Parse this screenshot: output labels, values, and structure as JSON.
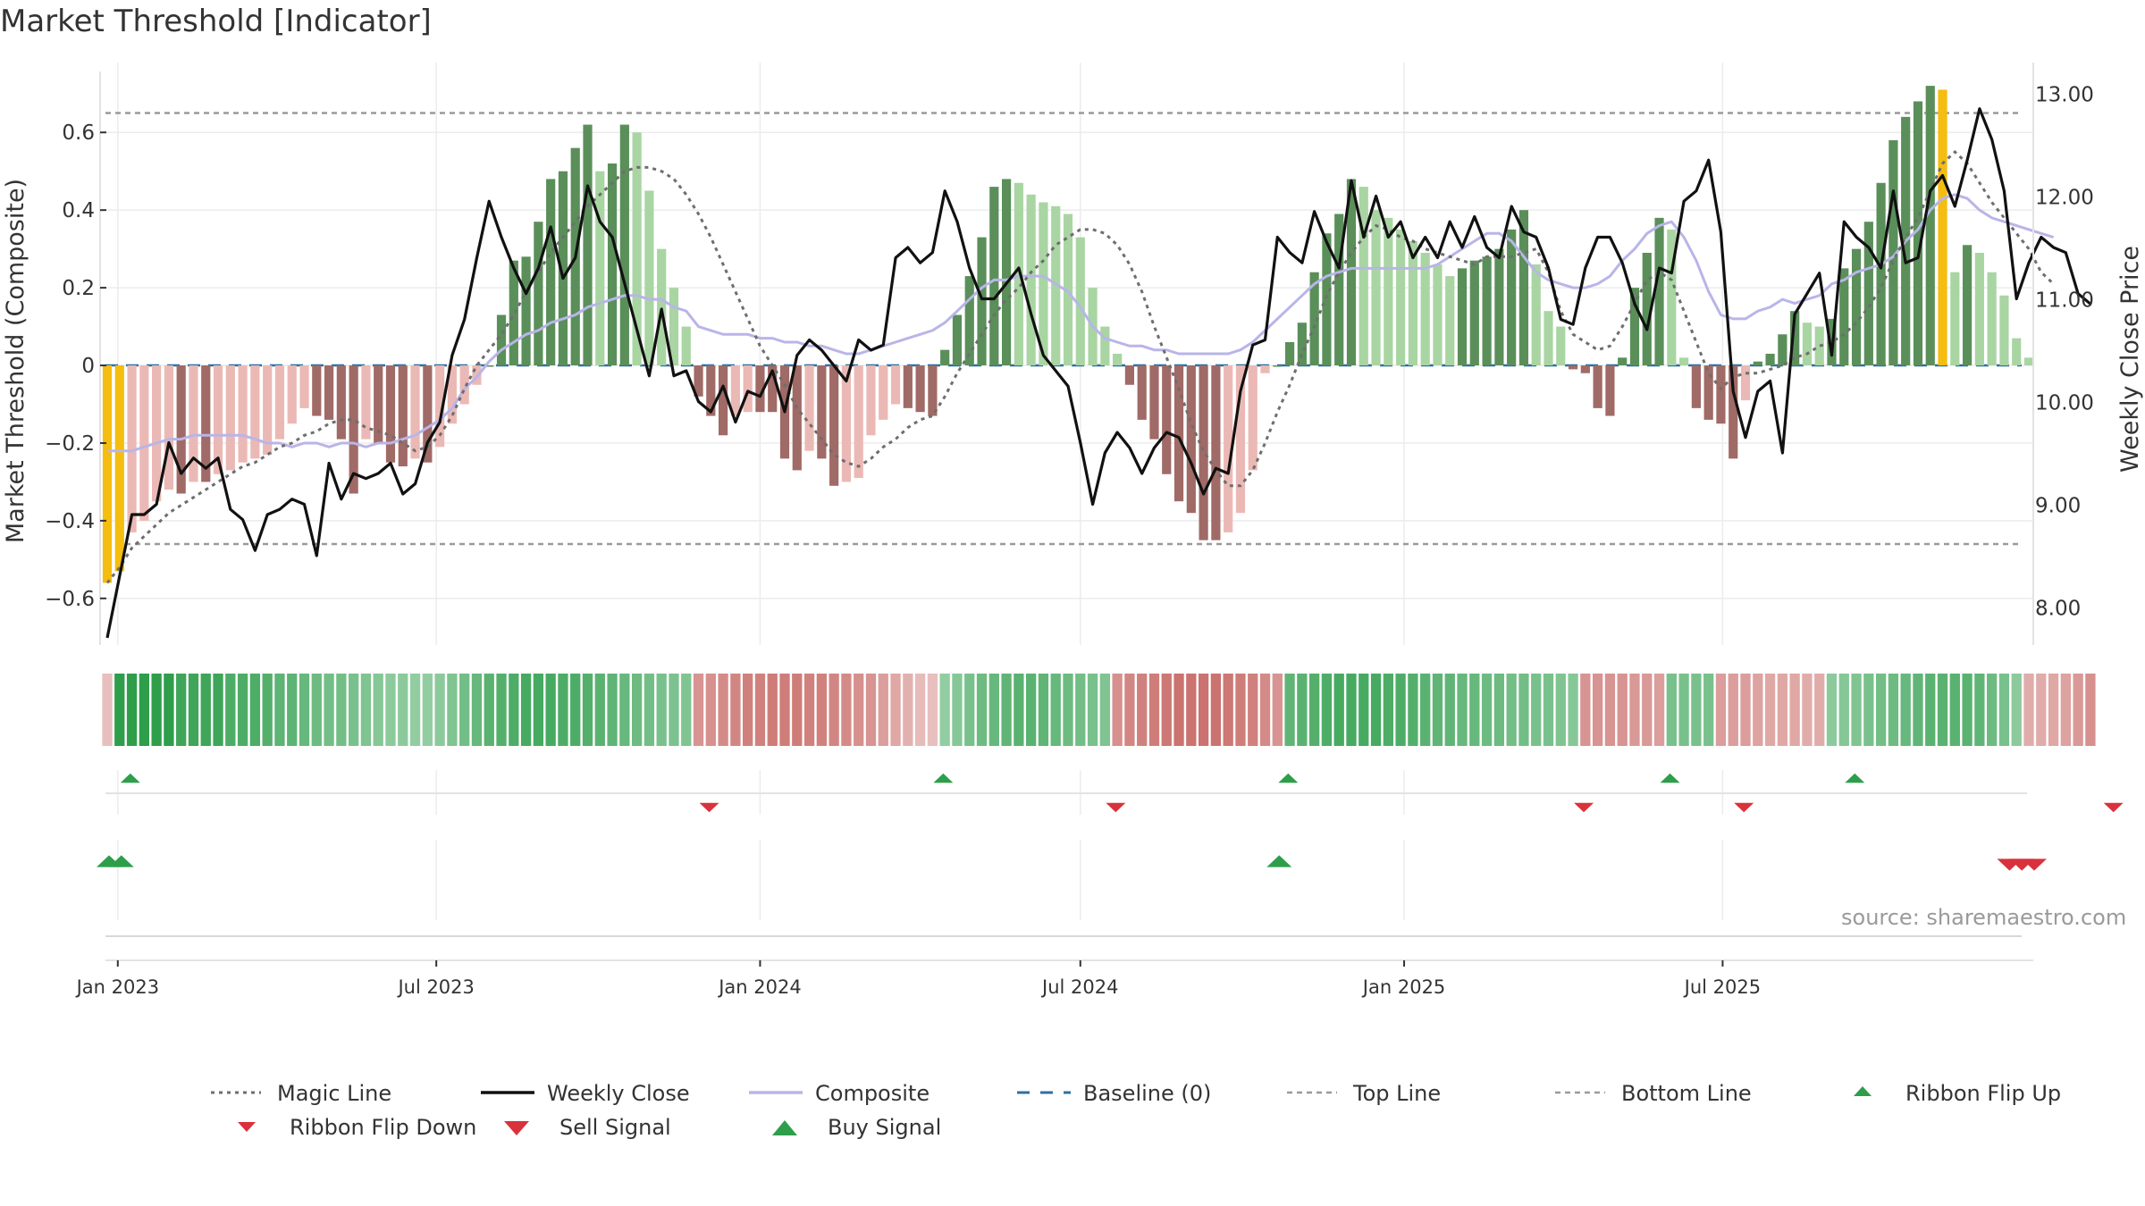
{
  "title": "Market Threshold [Indicator]",
  "source": "source: sharemaestro.com",
  "colors": {
    "green_strong": "#5a8f5a",
    "green_light": "#a9d5a3",
    "red_strong": "#a06a66",
    "red_light": "#ebb9b5",
    "extreme": "#f5bd0f",
    "close": "#111111",
    "composite": "#b9b5e8",
    "magic": "#6e6e6e",
    "baseline": "#2f6fa0",
    "band": "#9a9a9a",
    "buy": "#2e9e4b",
    "sell": "#d9323c"
  },
  "legend": [
    {
      "label": "Magic Line",
      "key": "magic",
      "style": "dotted"
    },
    {
      "label": "Weekly Close",
      "key": "close",
      "style": "solid"
    },
    {
      "label": "Composite",
      "key": "composite",
      "style": "solid"
    },
    {
      "label": "Baseline (0)",
      "key": "baseline",
      "style": "dashed"
    },
    {
      "label": "Top Line",
      "key": "band",
      "style": "dashed-fine"
    },
    {
      "label": "Bottom Line",
      "key": "band",
      "style": "dashed-fine"
    },
    {
      "label": "Ribbon Flip Up",
      "key": "buy",
      "style": "tri-up-small"
    },
    {
      "label": "Ribbon Flip Down",
      "key": "sell",
      "style": "tri-down-small"
    },
    {
      "label": "Sell Signal",
      "key": "sell",
      "style": "tri-down"
    },
    {
      "label": "Buy Signal",
      "key": "buy",
      "style": "tri-up"
    }
  ],
  "chart_data": {
    "type": "bar",
    "x_start": "2022-12-26",
    "x_interval": "1 week",
    "ylabel": "Market Threshold (Composite)",
    "y2label": "Weekly Close Price",
    "ylim": [
      -0.72,
      0.78
    ],
    "y2lim": [
      7.63,
      13.3
    ],
    "yticks": [
      0.6,
      0.4,
      0.2,
      0,
      -0.2,
      -0.4,
      -0.6
    ],
    "ytick_labels": [
      "0.6",
      "0.4",
      "0.2",
      "0",
      "−0.2",
      "−0.4",
      "−0.6"
    ],
    "y2ticks": [
      13.0,
      12.0,
      11.0,
      10.0,
      9.0,
      8.0
    ],
    "y2tick_labels": [
      "13.00",
      "12.00",
      "11.00",
      "10.00",
      "9.00",
      "8.00"
    ],
    "xticks": [
      "2023-01-01",
      "2023-07-01",
      "2024-01-01",
      "2024-07-01",
      "2025-01-01",
      "2025-07-01"
    ],
    "xtick_labels": [
      "Jan 2023",
      "Jul 2023",
      "Jan 2024",
      "Jul 2024",
      "Jan 2025",
      "Jul 2025"
    ],
    "top_line": 0.65,
    "bottom_line": -0.46,
    "baseline": 0,
    "grid": true,
    "series": [
      {
        "name": "Composite",
        "values": [
          -0.56,
          -0.53,
          -0.43,
          -0.4,
          -0.35,
          -0.32,
          -0.33,
          -0.3,
          -0.3,
          -0.28,
          -0.27,
          -0.25,
          -0.24,
          -0.23,
          -0.19,
          -0.15,
          -0.11,
          -0.13,
          -0.14,
          -0.19,
          -0.33,
          -0.19,
          -0.2,
          -0.25,
          -0.26,
          -0.24,
          -0.25,
          -0.21,
          -0.15,
          -0.1,
          -0.05,
          0.0,
          0.13,
          0.27,
          0.28,
          0.37,
          0.48,
          0.5,
          0.56,
          0.62,
          0.5,
          0.52,
          0.62,
          0.6,
          0.45,
          0.3,
          0.2,
          0.1,
          -0.08,
          -0.13,
          -0.18,
          -0.13,
          -0.12,
          -0.12,
          -0.12,
          -0.24,
          -0.27,
          -0.22,
          -0.24,
          -0.31,
          -0.3,
          -0.29,
          -0.18,
          -0.14,
          -0.1,
          -0.11,
          -0.12,
          -0.13,
          0.04,
          0.13,
          0.23,
          0.33,
          0.46,
          0.48,
          0.47,
          0.44,
          0.42,
          0.41,
          0.39,
          0.33,
          0.2,
          0.1,
          0.03,
          -0.05,
          -0.14,
          -0.19,
          -0.28,
          -0.35,
          -0.38,
          -0.45,
          -0.45,
          -0.43,
          -0.38,
          -0.27,
          -0.02,
          0.0,
          0.06,
          0.11,
          0.24,
          0.34,
          0.39,
          0.48,
          0.46,
          0.4,
          0.38,
          0.35,
          0.32,
          0.29,
          0.26,
          0.23,
          0.25,
          0.27,
          0.28,
          0.3,
          0.35,
          0.4,
          0.26,
          0.14,
          0.1,
          -0.01,
          -0.02,
          -0.11,
          -0.13,
          0.02,
          0.2,
          0.29,
          0.38,
          0.35,
          0.02,
          -0.11,
          -0.14,
          -0.15,
          -0.24,
          -0.09,
          0.01,
          0.03,
          0.08,
          0.14,
          0.11,
          0.1,
          0.12,
          0.25,
          0.3,
          0.37,
          0.47,
          0.58,
          0.64,
          0.68,
          0.72,
          0.71,
          0.24,
          0.31,
          0.29,
          0.24,
          0.18,
          0.07,
          0.02
        ]
      },
      {
        "name": "Weekly Close",
        "values": [
          7.7,
          8.3,
          8.9,
          8.9,
          9.0,
          9.6,
          9.3,
          9.45,
          9.35,
          9.45,
          8.95,
          8.85,
          8.55,
          8.9,
          8.95,
          9.05,
          9.0,
          8.5,
          9.4,
          9.05,
          9.3,
          9.25,
          9.3,
          9.4,
          9.1,
          9.2,
          9.6,
          9.8,
          10.45,
          10.8,
          11.4,
          11.95,
          11.6,
          11.3,
          11.05,
          11.3,
          11.7,
          11.2,
          11.4,
          12.1,
          11.75,
          11.6,
          11.15,
          10.7,
          10.25,
          10.9,
          10.25,
          10.3,
          10.0,
          9.9,
          10.15,
          9.8,
          10.1,
          10.05,
          10.3,
          9.9,
          10.45,
          10.6,
          10.5,
          10.35,
          10.2,
          10.6,
          10.5,
          10.55,
          11.4,
          11.5,
          11.35,
          11.45,
          12.05,
          11.75,
          11.3,
          11.0,
          11.0,
          11.15,
          11.3,
          10.85,
          10.45,
          10.3,
          10.15,
          9.6,
          9.0,
          9.5,
          9.7,
          9.55,
          9.3,
          9.55,
          9.7,
          9.65,
          9.4,
          9.1,
          9.35,
          9.3,
          10.1,
          10.55,
          10.6,
          11.6,
          11.45,
          11.35,
          11.85,
          11.55,
          11.3,
          12.15,
          11.6,
          12.0,
          11.6,
          11.75,
          11.4,
          11.6,
          11.4,
          11.75,
          11.5,
          11.8,
          11.5,
          11.4,
          11.9,
          11.65,
          11.6,
          11.3,
          10.8,
          10.75,
          11.3,
          11.6,
          11.6,
          11.35,
          10.95,
          10.7,
          11.3,
          11.25,
          11.95,
          12.05,
          12.35,
          11.65,
          10.1,
          9.65,
          10.1,
          10.2,
          9.5,
          10.85,
          11.05,
          11.25,
          10.45,
          11.75,
          11.6,
          11.5,
          11.3,
          12.05,
          11.35,
          11.4,
          12.05,
          12.2,
          11.9,
          12.35,
          12.85,
          12.55,
          12.05,
          11.0,
          11.35,
          11.6,
          11.5,
          11.45,
          11.05,
          10.95
        ]
      },
      {
        "name": "Composite",
        "values": [
          -0.22,
          -0.22,
          -0.22,
          -0.21,
          -0.2,
          -0.19,
          -0.19,
          -0.18,
          -0.18,
          -0.18,
          -0.18,
          -0.18,
          -0.19,
          -0.2,
          -0.2,
          -0.21,
          -0.2,
          -0.2,
          -0.21,
          -0.2,
          -0.2,
          -0.21,
          -0.2,
          -0.2,
          -0.19,
          -0.18,
          -0.16,
          -0.14,
          -0.11,
          -0.06,
          -0.03,
          0.01,
          0.04,
          0.06,
          0.08,
          0.09,
          0.11,
          0.12,
          0.13,
          0.15,
          0.16,
          0.17,
          0.18,
          0.18,
          0.17,
          0.17,
          0.15,
          0.14,
          0.1,
          0.09,
          0.08,
          0.08,
          0.08,
          0.07,
          0.07,
          0.06,
          0.06,
          0.05,
          0.05,
          0.04,
          0.03,
          0.03,
          0.04,
          0.05,
          0.06,
          0.07,
          0.08,
          0.09,
          0.11,
          0.14,
          0.17,
          0.2,
          0.22,
          0.22,
          0.23,
          0.23,
          0.23,
          0.21,
          0.19,
          0.15,
          0.1,
          0.07,
          0.06,
          0.05,
          0.05,
          0.04,
          0.04,
          0.03,
          0.03,
          0.03,
          0.03,
          0.03,
          0.04,
          0.06,
          0.09,
          0.12,
          0.15,
          0.18,
          0.21,
          0.23,
          0.24,
          0.25,
          0.25,
          0.25,
          0.25,
          0.25,
          0.25,
          0.25,
          0.26,
          0.28,
          0.3,
          0.32,
          0.34,
          0.34,
          0.32,
          0.28,
          0.24,
          0.22,
          0.21,
          0.2,
          0.2,
          0.21,
          0.23,
          0.27,
          0.3,
          0.34,
          0.36,
          0.37,
          0.33,
          0.27,
          0.19,
          0.13,
          0.12,
          0.12,
          0.14,
          0.15,
          0.17,
          0.16,
          0.17,
          0.18,
          0.21,
          0.22,
          0.24,
          0.25,
          0.26,
          0.28,
          0.32,
          0.35,
          0.4,
          0.43,
          0.44,
          0.43,
          0.4,
          0.38,
          0.37,
          0.36,
          0.35,
          0.34,
          0.33
        ]
      },
      {
        "name": "Magic Line",
        "values": [
          -0.56,
          -0.52,
          -0.47,
          -0.44,
          -0.41,
          -0.38,
          -0.36,
          -0.34,
          -0.32,
          -0.3,
          -0.28,
          -0.26,
          -0.25,
          -0.23,
          -0.21,
          -0.2,
          -0.18,
          -0.17,
          -0.15,
          -0.14,
          -0.14,
          -0.16,
          -0.17,
          -0.18,
          -0.2,
          -0.22,
          -0.21,
          -0.18,
          -0.13,
          -0.06,
          0.0,
          0.04,
          0.08,
          0.13,
          0.19,
          0.24,
          0.29,
          0.33,
          0.37,
          0.41,
          0.44,
          0.47,
          0.5,
          0.51,
          0.51,
          0.5,
          0.48,
          0.44,
          0.39,
          0.33,
          0.26,
          0.19,
          0.12,
          0.05,
          0.0,
          -0.05,
          -0.11,
          -0.15,
          -0.19,
          -0.23,
          -0.25,
          -0.26,
          -0.24,
          -0.21,
          -0.19,
          -0.16,
          -0.14,
          -0.13,
          -0.08,
          -0.02,
          0.03,
          0.08,
          0.13,
          0.17,
          0.2,
          0.24,
          0.27,
          0.31,
          0.33,
          0.35,
          0.35,
          0.34,
          0.31,
          0.26,
          0.19,
          0.1,
          0.02,
          -0.06,
          -0.15,
          -0.22,
          -0.27,
          -0.31,
          -0.31,
          -0.27,
          -0.2,
          -0.12,
          -0.05,
          0.03,
          0.1,
          0.18,
          0.24,
          0.29,
          0.33,
          0.36,
          0.35,
          0.33,
          0.32,
          0.3,
          0.29,
          0.28,
          0.27,
          0.26,
          0.28,
          0.28,
          0.28,
          0.29,
          0.3,
          0.24,
          0.14,
          0.08,
          0.06,
          0.04,
          0.05,
          0.1,
          0.16,
          0.22,
          0.24,
          0.22,
          0.14,
          0.06,
          -0.02,
          -0.06,
          -0.03,
          -0.02,
          -0.02,
          -0.01,
          0.0,
          0.02,
          0.03,
          0.05,
          0.06,
          0.08,
          0.11,
          0.15,
          0.2,
          0.27,
          0.33,
          0.38,
          0.45,
          0.52,
          0.55,
          0.52,
          0.47,
          0.42,
          0.38,
          0.34,
          0.3,
          0.24,
          0.21
        ]
      }
    ],
    "ribbon": [
      -0.1,
      0.5,
      0.5,
      0.5,
      0.5,
      0.5,
      0.45,
      0.45,
      0.45,
      0.45,
      0.4,
      0.4,
      0.4,
      0.38,
      0.35,
      0.35,
      0.32,
      0.3,
      0.28,
      0.28,
      0.26,
      0.24,
      0.22,
      0.2,
      0.2,
      0.18,
      0.18,
      0.2,
      0.24,
      0.28,
      0.32,
      0.36,
      0.38,
      0.4,
      0.42,
      0.42,
      0.42,
      0.4,
      0.4,
      0.38,
      0.36,
      0.34,
      0.32,
      0.3,
      0.28,
      0.26,
      0.25,
      0.24,
      -0.28,
      -0.3,
      -0.32,
      -0.34,
      -0.36,
      -0.36,
      -0.38,
      -0.38,
      -0.38,
      -0.36,
      -0.36,
      -0.34,
      -0.32,
      -0.3,
      -0.28,
      -0.24,
      -0.2,
      -0.16,
      -0.12,
      -0.1,
      0.18,
      0.22,
      0.26,
      0.3,
      0.32,
      0.34,
      0.36,
      0.36,
      0.34,
      0.32,
      0.3,
      0.28,
      0.26,
      0.24,
      -0.3,
      -0.34,
      -0.36,
      -0.38,
      -0.4,
      -0.42,
      -0.42,
      -0.42,
      -0.42,
      -0.4,
      -0.38,
      -0.36,
      -0.32,
      -0.28,
      0.34,
      0.36,
      0.38,
      0.4,
      0.42,
      0.42,
      0.42,
      0.42,
      0.4,
      0.4,
      0.38,
      0.36,
      0.34,
      0.34,
      0.32,
      0.32,
      0.3,
      0.3,
      0.28,
      0.28,
      0.26,
      0.26,
      0.24,
      0.22,
      -0.28,
      -0.28,
      -0.28,
      -0.28,
      -0.26,
      -0.26,
      -0.24,
      0.26,
      0.26,
      0.26,
      0.26,
      -0.24,
      -0.24,
      -0.24,
      -0.22,
      -0.2,
      -0.2,
      -0.2,
      -0.18,
      -0.18,
      0.2,
      0.22,
      0.24,
      0.26,
      0.28,
      0.3,
      0.32,
      0.34,
      0.36,
      0.36,
      0.36,
      0.36,
      0.34,
      0.3,
      0.26,
      0.2,
      -0.18,
      -0.18,
      -0.2,
      -0.22,
      -0.26,
      -0.3
    ],
    "ribbon_flip_up": [
      1,
      67,
      95,
      126,
      141
    ],
    "ribbon_flip_down": [
      48,
      81,
      119,
      132,
      162
    ],
    "buy_signal": [
      0,
      1,
      95
    ],
    "sell_signal": [
      154,
      155,
      156
    ]
  }
}
